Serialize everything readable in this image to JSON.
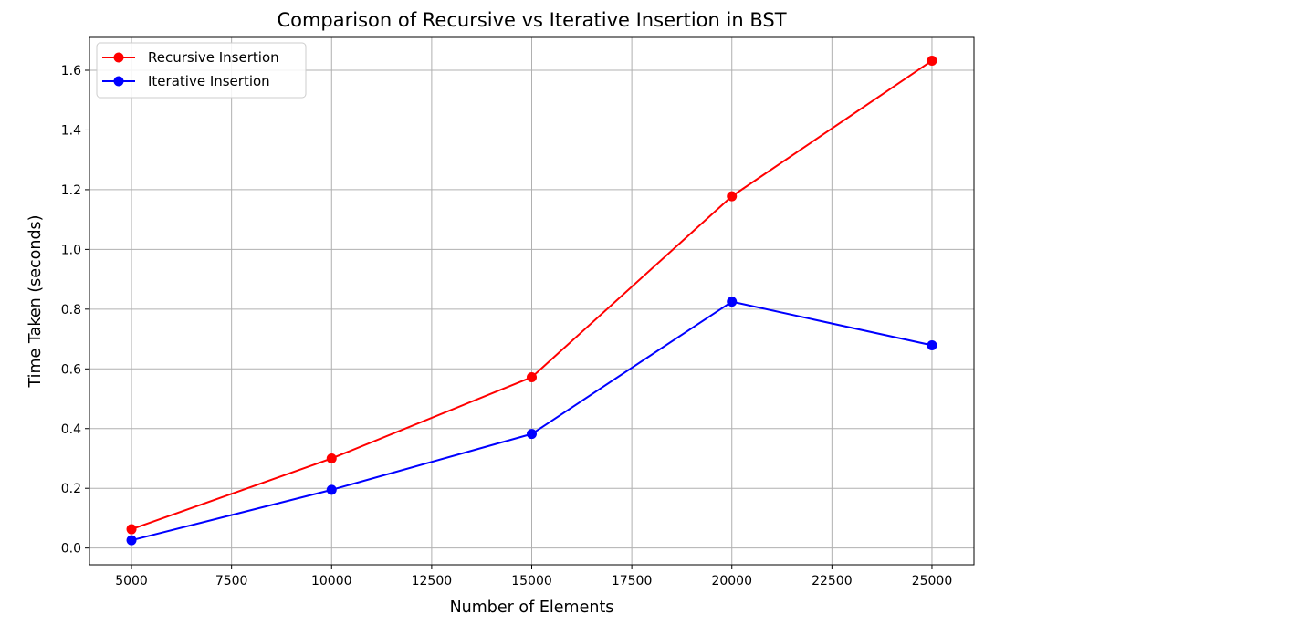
{
  "chart_data": {
    "type": "line",
    "title": "Comparison of Recursive vs Iterative Insertion in BST",
    "xlabel": "Number of Elements",
    "ylabel": "Time Taken (seconds)",
    "x": [
      5000,
      10000,
      15000,
      20000,
      25000
    ],
    "xlim": [
      3950,
      26050
    ],
    "ylim": [
      -0.056,
      1.71
    ],
    "xticks": [
      5000,
      7500,
      10000,
      12500,
      15000,
      17500,
      20000,
      22500,
      25000
    ],
    "yticks": [
      0.0,
      0.2,
      0.4,
      0.6,
      0.8,
      1.0,
      1.2,
      1.4,
      1.6
    ],
    "ytick_labels": [
      "0.0",
      "0.2",
      "0.4",
      "0.6",
      "0.8",
      "1.0",
      "1.2",
      "1.4",
      "1.6"
    ],
    "grid": true,
    "legend_position": "top-left",
    "series": [
      {
        "name": "Recursive Insertion",
        "color": "#ff0000",
        "marker": "circle",
        "values": [
          0.063,
          0.3,
          0.572,
          1.178,
          1.632
        ]
      },
      {
        "name": "Iterative Insertion",
        "color": "#0000ff",
        "marker": "circle",
        "values": [
          0.026,
          0.195,
          0.382,
          0.825,
          0.679
        ]
      }
    ]
  }
}
